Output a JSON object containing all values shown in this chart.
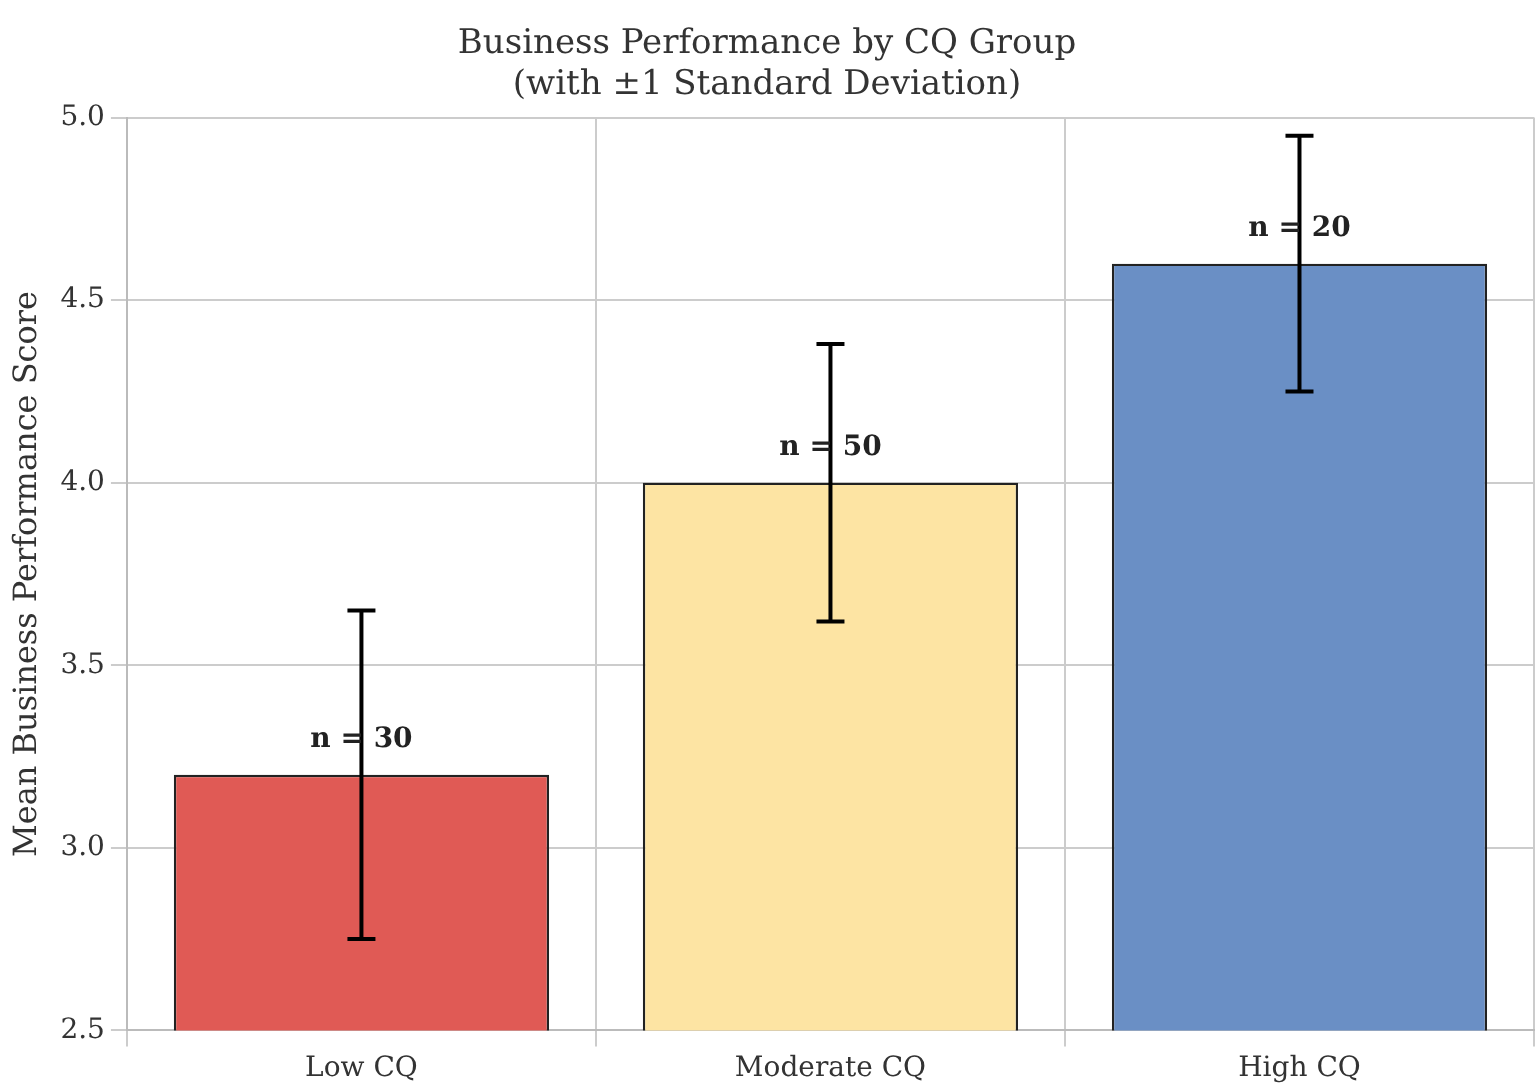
{
  "chart_data": {
    "type": "bar",
    "title": "Business Performance by CQ Group",
    "subtitle": "(with ±1 Standard Deviation)",
    "ylabel": "Mean Business Performance Score",
    "categories": [
      "Low CQ",
      "Moderate CQ",
      "High CQ"
    ],
    "values": [
      3.2,
      4.0,
      4.6
    ],
    "errors": [
      0.45,
      0.38,
      0.35
    ],
    "colors": [
      "#e05a55",
      "#fde4a3",
      "#6a8fc5"
    ],
    "ylim": [
      2.5,
      5.0
    ],
    "yticks": [
      2.5,
      {
        "value": 3,
        "label": "3.0"
      },
      3.5,
      {
        "value": 4,
        "label": "4.0"
      },
      4.5,
      {
        "value": 5,
        "label": "5.0"
      }
    ],
    "grid": true,
    "annotations": [
      {
        "text": "n = 30",
        "x": "Low CQ",
        "y": 3.28
      },
      {
        "text": "n = 50",
        "x": "Moderate CQ",
        "y": 4.08
      },
      {
        "text": "n = 20",
        "x": "High CQ",
        "y": 4.68
      }
    ]
  }
}
